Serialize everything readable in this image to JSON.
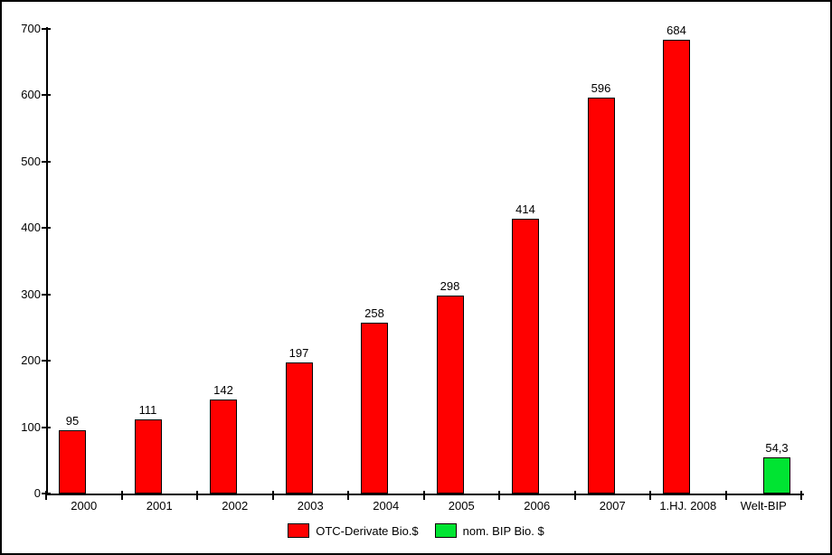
{
  "chart_data": {
    "type": "bar",
    "title": "",
    "xlabel": "",
    "ylabel": "",
    "categories": [
      "2000",
      "2001",
      "2002",
      "2003",
      "2004",
      "2005",
      "2006",
      "2007",
      "1.HJ. 2008",
      "Welt-BIP"
    ],
    "series": [
      {
        "name": "OTC-Derivate Bio.$",
        "color": "#ff0000",
        "values": [
          95,
          111,
          142,
          197,
          258,
          298,
          414,
          596,
          684,
          null
        ],
        "labels": [
          "95",
          "111",
          "142",
          "197",
          "258",
          "298",
          "414",
          "596",
          "684",
          null
        ]
      },
      {
        "name": "nom. BIP Bio. $",
        "color": "#00e432",
        "values": [
          null,
          null,
          null,
          null,
          null,
          null,
          null,
          null,
          null,
          54.3
        ],
        "labels": [
          null,
          null,
          null,
          null,
          null,
          null,
          null,
          null,
          null,
          "54,3"
        ]
      }
    ],
    "ylim": [
      0,
      700
    ],
    "ytick_step": 100,
    "yticks": [
      "0",
      "100",
      "200",
      "300",
      "400",
      "500",
      "600",
      "700"
    ],
    "grid": false,
    "legend_position": "bottom",
    "background_color": "#ffffff",
    "border_color": "#000000"
  }
}
